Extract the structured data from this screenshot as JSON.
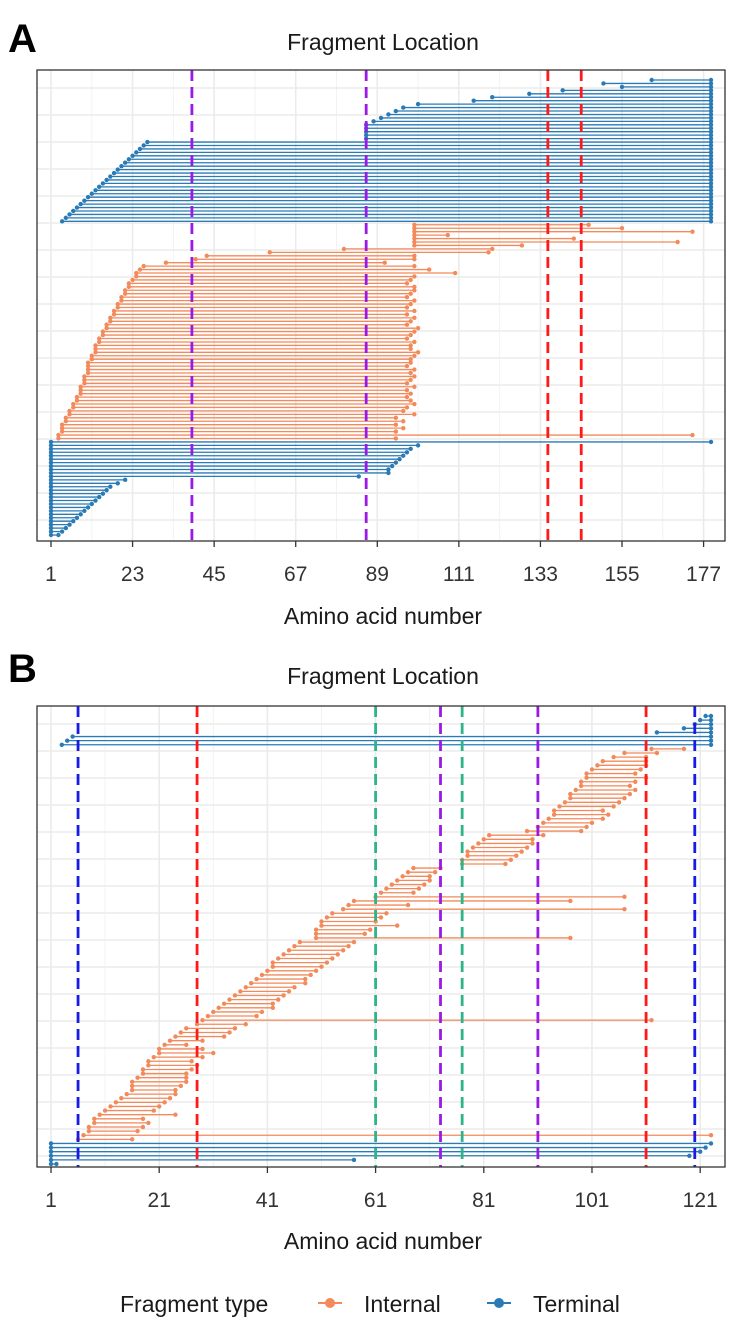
{
  "legend": {
    "title": "Fragment type",
    "items": [
      {
        "label": "Internal",
        "color": "#F28A5B"
      },
      {
        "label": "Terminal",
        "color": "#2A7AB5"
      }
    ]
  },
  "chart_data": [
    {
      "panel": "A",
      "type": "segment",
      "title": "Fragment Location",
      "xlabel": "Amino acid number",
      "xlim": [
        1,
        179
      ],
      "xticks": [
        1,
        23,
        45,
        67,
        89,
        111,
        133,
        155,
        177
      ],
      "grid": true,
      "vlines": [
        {
          "x": 39,
          "color": "#9A19E6"
        },
        {
          "x": 86,
          "color": "#9A19E6"
        },
        {
          "x": 135,
          "color": "#FF1A1A"
        },
        {
          "x": 144,
          "color": "#FF1A1A"
        }
      ],
      "bands": [
        {
          "type": "Terminal",
          "rows": 20,
          "starts": [
            163,
            130,
            115,
            88,
            140,
            94,
            160,
            150,
            100
          ],
          "start_from": 179,
          "end": 179,
          "fill_from_end": true
        },
        {
          "type": "Terminal",
          "rows": 26,
          "start_range": [
            27,
            4
          ],
          "end": 179
        }
      ],
      "groups": [
        {
          "type": "Terminal",
          "segments": [
            [
              163,
              179
            ],
            [
              150,
              179
            ],
            [
              155,
              179
            ],
            [
              139,
              179
            ],
            [
              130,
              179
            ],
            [
              120,
              179
            ],
            [
              115,
              179
            ],
            [
              100,
              179
            ],
            [
              96,
              179
            ],
            [
              94,
              179
            ],
            [
              92,
              179
            ],
            [
              90,
              179
            ],
            [
              88,
              179
            ],
            [
              86,
              179
            ],
            [
              86,
              179
            ],
            [
              86,
              179
            ],
            [
              86,
              179
            ],
            [
              86,
              179
            ],
            [
              27,
              179
            ],
            [
              26,
              179
            ],
            [
              25,
              179
            ],
            [
              24,
              179
            ],
            [
              23,
              179
            ],
            [
              22,
              179
            ],
            [
              21,
              179
            ],
            [
              20,
              179
            ],
            [
              19,
              179
            ],
            [
              18,
              179
            ],
            [
              17,
              179
            ],
            [
              16,
              179
            ],
            [
              15,
              179
            ],
            [
              14,
              179
            ],
            [
              13,
              179
            ],
            [
              12,
              179
            ],
            [
              11,
              179
            ],
            [
              10,
              179
            ],
            [
              9,
              179
            ],
            [
              8,
              179
            ],
            [
              7,
              179
            ],
            [
              6,
              179
            ],
            [
              5,
              179
            ],
            [
              4,
              179
            ]
          ]
        },
        {
          "type": "Internal",
          "segments": [
            [
              99,
              146
            ],
            [
              99,
              155
            ],
            [
              99,
              174
            ],
            [
              99,
              108
            ],
            [
              99,
              142
            ],
            [
              99,
              170
            ],
            [
              99,
              128
            ],
            [
              80,
              120
            ],
            [
              60,
              119
            ],
            [
              43,
              99
            ],
            [
              40,
              99
            ],
            [
              32,
              91
            ],
            [
              26,
              99
            ],
            [
              25,
              103
            ],
            [
              24,
              110
            ],
            [
              24,
              99
            ],
            [
              23,
              98
            ],
            [
              22,
              97
            ],
            [
              22,
              99
            ],
            [
              21,
              99
            ],
            [
              21,
              98
            ],
            [
              20,
              97
            ],
            [
              20,
              99
            ],
            [
              19,
              98
            ],
            [
              19,
              97
            ],
            [
              18,
              99
            ],
            [
              18,
              97
            ],
            [
              17,
              99
            ],
            [
              17,
              98
            ],
            [
              16,
              97
            ],
            [
              16,
              100
            ],
            [
              15,
              99
            ],
            [
              15,
              98
            ],
            [
              14,
              97
            ],
            [
              14,
              99
            ],
            [
              13,
              98
            ],
            [
              13,
              98
            ],
            [
              13,
              100
            ],
            [
              12,
              99
            ],
            [
              12,
              98
            ],
            [
              11,
              98
            ],
            [
              11,
              97
            ],
            [
              11,
              99
            ],
            [
              11,
              98
            ],
            [
              10,
              99
            ],
            [
              10,
              98
            ],
            [
              10,
              97
            ],
            [
              9,
              99
            ],
            [
              9,
              97
            ],
            [
              9,
              98
            ],
            [
              8,
              97
            ],
            [
              8,
              98
            ],
            [
              7,
              99
            ],
            [
              7,
              97
            ],
            [
              6,
              96
            ],
            [
              6,
              99
            ],
            [
              5,
              94
            ],
            [
              5,
              96
            ],
            [
              4,
              94
            ],
            [
              4,
              96
            ],
            [
              4,
              94
            ],
            [
              3,
              174
            ],
            [
              3,
              94
            ]
          ]
        },
        {
          "type": "Terminal",
          "segments": [
            [
              1,
              179
            ],
            [
              1,
              100
            ],
            [
              1,
              98
            ],
            [
              1,
              97
            ],
            [
              1,
              96
            ],
            [
              1,
              95
            ],
            [
              1,
              94
            ],
            [
              1,
              93
            ],
            [
              1,
              92
            ],
            [
              1,
              92
            ],
            [
              1,
              84
            ],
            [
              1,
              21
            ],
            [
              1,
              19
            ],
            [
              1,
              17
            ],
            [
              1,
              16
            ],
            [
              1,
              15
            ],
            [
              1,
              14
            ],
            [
              1,
              13
            ],
            [
              1,
              12
            ],
            [
              1,
              11
            ],
            [
              1,
              10
            ],
            [
              1,
              9
            ],
            [
              1,
              8
            ],
            [
              1,
              7
            ],
            [
              1,
              6
            ],
            [
              1,
              5
            ],
            [
              1,
              4
            ],
            [
              1,
              3
            ]
          ]
        }
      ]
    },
    {
      "panel": "B",
      "type": "segment",
      "title": "Fragment Location",
      "xlabel": "Amino acid number",
      "xlim": [
        1,
        123
      ],
      "xticks": [
        1,
        21,
        41,
        61,
        81,
        101,
        121
      ],
      "grid": true,
      "vlines": [
        {
          "x": 6,
          "color": "#1A1AE6"
        },
        {
          "x": 28,
          "color": "#FF1A1A"
        },
        {
          "x": 61,
          "color": "#2EB38A"
        },
        {
          "x": 73,
          "color": "#9A19E6"
        },
        {
          "x": 77,
          "color": "#2EB38A"
        },
        {
          "x": 91,
          "color": "#9A19E6"
        },
        {
          "x": 111,
          "color": "#FF1A1A"
        },
        {
          "x": 120,
          "color": "#1A1AE6"
        }
      ],
      "groups": [
        {
          "type": "Terminal",
          "segments": [
            [
              122,
              123
            ],
            [
              121,
              123
            ],
            [
              120,
              123
            ],
            [
              118,
              123
            ],
            [
              113,
              123
            ],
            [
              5,
              123
            ],
            [
              4,
              123
            ],
            [
              3,
              123
            ]
          ]
        },
        {
          "type": "Internal",
          "segments": [
            [
              112,
              118
            ],
            [
              107,
              113
            ],
            [
              105,
              111
            ],
            [
              103,
              111
            ],
            [
              102,
              111
            ],
            [
              101,
              110
            ],
            [
              100,
              109
            ],
            [
              100,
              111
            ],
            [
              99,
              109
            ],
            [
              99,
              108
            ],
            [
              98,
              109
            ],
            [
              97,
              108
            ],
            [
              97,
              107
            ],
            [
              96,
              106
            ],
            [
              95,
              105
            ],
            [
              94,
              103
            ],
            [
              94,
              104
            ],
            [
              93,
              103
            ],
            [
              92,
              101
            ],
            [
              91,
              100
            ],
            [
              89,
              99
            ],
            [
              82,
              92
            ],
            [
              81,
              90
            ],
            [
              80,
              90
            ],
            [
              79,
              89
            ],
            [
              78,
              88
            ],
            [
              78,
              87
            ],
            [
              77,
              86
            ],
            [
              77,
              85
            ],
            [
              68,
              73
            ],
            [
              67,
              72
            ],
            [
              66,
              71
            ],
            [
              65,
              71
            ],
            [
              64,
              70
            ],
            [
              63,
              69
            ],
            [
              62,
              68
            ],
            [
              61,
              107
            ],
            [
              57,
              97
            ],
            [
              56,
              67
            ],
            [
              55,
              107
            ],
            [
              53,
              63
            ],
            [
              52,
              62
            ],
            [
              51,
              61
            ],
            [
              51,
              65
            ],
            [
              50,
              60
            ],
            [
              50,
              59
            ],
            [
              50,
              97
            ],
            [
              47,
              57
            ],
            [
              46,
              56
            ],
            [
              45,
              55
            ],
            [
              44,
              54
            ],
            [
              43,
              53
            ],
            [
              42,
              52
            ],
            [
              42,
              51
            ],
            [
              41,
              50
            ],
            [
              40,
              49
            ],
            [
              39,
              48
            ],
            [
              38,
              48
            ],
            [
              37,
              46
            ],
            [
              36,
              45
            ],
            [
              35,
              44
            ],
            [
              34,
              43
            ],
            [
              33,
              42
            ],
            [
              32,
              42
            ],
            [
              31,
              40
            ],
            [
              30,
              39
            ],
            [
              29,
              112
            ],
            [
              28,
              37
            ],
            [
              26,
              35
            ],
            [
              25,
              34
            ],
            [
              24,
              33
            ],
            [
              23,
              29
            ],
            [
              22,
              26
            ],
            [
              21,
              29
            ],
            [
              21,
              31
            ],
            [
              20,
              29
            ],
            [
              19,
              27
            ],
            [
              19,
              28
            ],
            [
              18,
              27
            ],
            [
              18,
              26
            ],
            [
              17,
              26
            ],
            [
              16,
              26
            ],
            [
              16,
              25
            ],
            [
              16,
              24
            ],
            [
              15,
              24
            ],
            [
              14,
              23
            ],
            [
              13,
              22
            ],
            [
              12,
              21
            ],
            [
              11,
              20
            ],
            [
              10,
              24
            ],
            [
              9,
              18
            ],
            [
              9,
              19
            ],
            [
              8,
              18
            ],
            [
              8,
              17
            ],
            [
              7,
              123
            ],
            [
              6,
              16
            ]
          ]
        },
        {
          "type": "Terminal",
          "segments": [
            [
              1,
              123
            ],
            [
              1,
              122
            ],
            [
              1,
              121
            ],
            [
              1,
              119
            ],
            [
              1,
              57
            ],
            [
              1,
              2
            ]
          ]
        }
      ]
    }
  ]
}
